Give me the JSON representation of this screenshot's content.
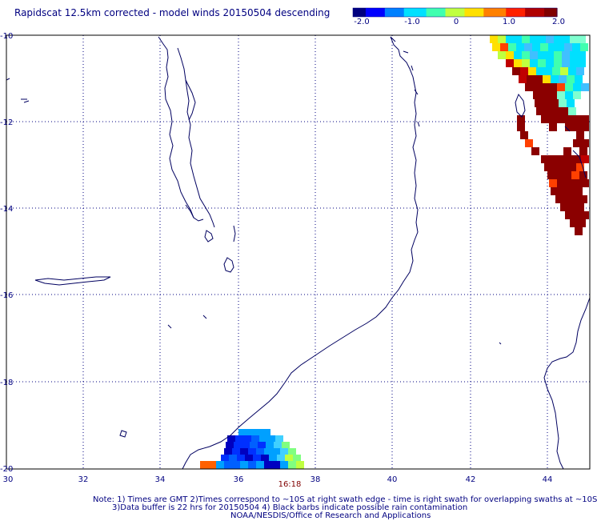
{
  "title": "Rapidscat 12.5km corrected - model winds 20150504 descending",
  "colorbar": {
    "ticks": [
      "-2.0",
      "-1.0",
      "0",
      "1.0",
      "2.0"
    ],
    "colors": [
      "#00007f",
      "#0000ff",
      "#0080ff",
      "#00e0ff",
      "#40ffb0",
      "#c0ff40",
      "#ffe000",
      "#ff8000",
      "#ff2000",
      "#b00000",
      "#800000"
    ]
  },
  "map": {
    "x_ticks": [
      "30",
      "32",
      "34",
      "36",
      "38",
      "40",
      "42",
      "44"
    ],
    "y_ticks": [
      "-10",
      "-12",
      "-14",
      "-16",
      "-18",
      "-20"
    ],
    "lon_range": [
      30,
      45
    ],
    "lat_range": [
      -10,
      -20
    ],
    "grid": "dotted",
    "coastline_color": "#000060",
    "time_label": "16:18"
  },
  "swaths": {
    "northeast_colors": [
      "#8b0000",
      "#c00000",
      "#ff4000",
      "#ffe000",
      "#c0ff40",
      "#40ffb0",
      "#00e0ff",
      "#40c0ff",
      "#80ffd0"
    ],
    "south_colors": [
      "#0000c0",
      "#0030ff",
      "#0060ff",
      "#00a0ff",
      "#40d0ff",
      "#80ff80",
      "#c0ff40",
      "#ff6000"
    ]
  },
  "notes": {
    "line1": "Note: 1) Times are GMT 2)Times correspond to ~10S at right swath edge - time is right swath for overlapping swaths at ~10S",
    "line2": "3)Data buffer is 22 hrs for 20150504 4) Black barbs indicate possible rain contamination",
    "line3": "NOAA/NESDIS/Office of Research and Applications"
  }
}
